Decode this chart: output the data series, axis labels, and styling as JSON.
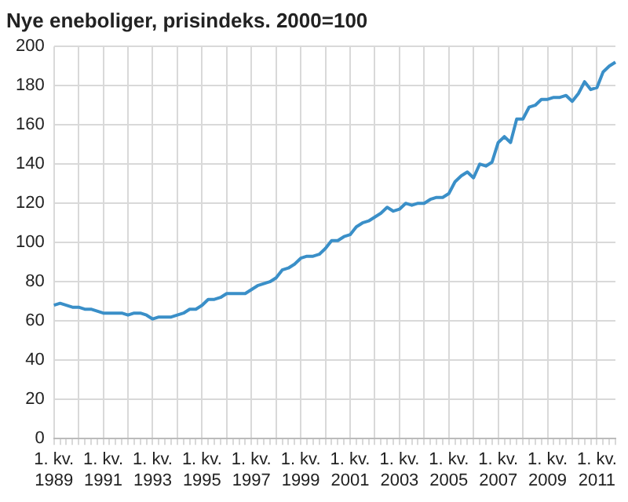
{
  "chart_data": {
    "type": "line",
    "title": "Nye eneboliger, prisindeks. 2000=100",
    "categories": [
      "1. kv.\n1989",
      null,
      null,
      null,
      null,
      null,
      null,
      null,
      "1. kv.\n1991",
      null,
      null,
      null,
      null,
      null,
      null,
      null,
      "1. kv.\n1993",
      null,
      null,
      null,
      null,
      null,
      null,
      null,
      "1. kv.\n1995",
      null,
      null,
      null,
      null,
      null,
      null,
      null,
      "1. kv.\n1997",
      null,
      null,
      null,
      null,
      null,
      null,
      null,
      "1. kv.\n1999",
      null,
      null,
      null,
      null,
      null,
      null,
      null,
      "1. kv.\n2001",
      null,
      null,
      null,
      null,
      null,
      null,
      null,
      "1. kv.\n2003",
      null,
      null,
      null,
      null,
      null,
      null,
      null,
      "1. kv.\n2005",
      null,
      null,
      null,
      null,
      null,
      null,
      null,
      "1. kv.\n2007",
      null,
      null,
      null,
      null,
      null,
      null,
      null,
      "1. kv.\n2009",
      null,
      null,
      null,
      null,
      null,
      null,
      null,
      "1. kv.\n2011",
      null,
      null,
      null
    ],
    "series": [
      {
        "color": "#3a8fc8",
        "values": [
          68,
          69,
          68,
          67,
          67,
          66,
          66,
          65,
          64,
          64,
          64,
          64,
          63,
          64,
          64,
          63,
          61,
          62,
          62,
          62,
          63,
          64,
          66,
          66,
          68,
          71,
          71,
          72,
          74,
          74,
          74,
          74,
          76,
          78,
          79,
          80,
          82,
          86,
          87,
          89,
          92,
          93,
          93,
          94,
          97,
          101,
          101,
          103,
          104,
          108,
          110,
          111,
          113,
          115,
          118,
          116,
          117,
          120,
          119,
          120,
          120,
          122,
          123,
          123,
          125,
          131,
          134,
          136,
          133,
          140,
          139,
          141,
          151,
          154,
          151,
          163,
          163,
          169,
          170,
          173,
          173,
          174,
          174,
          175,
          172,
          176,
          182,
          178,
          179,
          187,
          190,
          192
        ]
      }
    ],
    "ylim": [
      0,
      200
    ],
    "yticks": [
      0,
      20,
      40,
      60,
      80,
      100,
      120,
      140,
      160,
      180,
      200
    ],
    "grid": true,
    "legend": false,
    "marker": "none",
    "line_style": "solid"
  }
}
